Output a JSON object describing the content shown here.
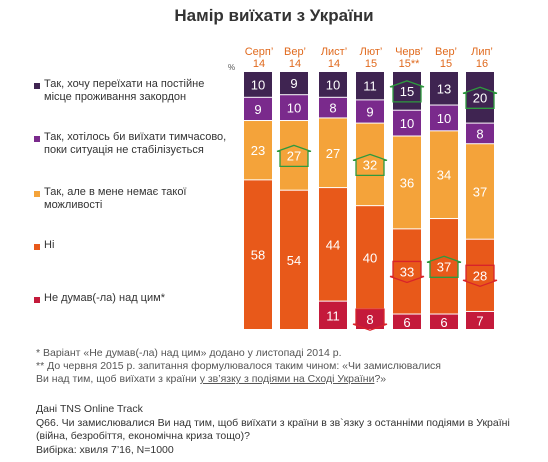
{
  "title": "Намір виїхати з України",
  "percent_sign": "%",
  "columns": [
    {
      "line1": "Серп’",
      "line2": "14"
    },
    {
      "line1": "Вер’",
      "line2": "14"
    },
    {
      "line1": "Лист’",
      "line2": "14"
    },
    {
      "line1": "Лют’",
      "line2": "15"
    },
    {
      "line1": "Черв’",
      "line2": "15**"
    },
    {
      "line1": "Вер’",
      "line2": "15"
    },
    {
      "line1": "Лип’",
      "line2": "16"
    }
  ],
  "legend": [
    {
      "text": "Так, хочу переїхати на постійне місце проживання закордон",
      "color": "#3f2451"
    },
    {
      "text": "Так, хотілось би виїхати тимчасово, поки ситуація не стабілізується",
      "color": "#7a2a8c"
    },
    {
      "text": "Так, але в мене немає такої можливості",
      "color": "#f4a33a"
    },
    {
      "text": "Ні",
      "color": "#e8591a"
    },
    {
      "text": "Не думав(-ла) над цим*",
      "color": "#c41a3b"
    }
  ],
  "chart_data": {
    "type": "bar",
    "stacked": true,
    "categories": [
      "Серп’ 14",
      "Вер’ 14",
      "Лист’ 14",
      "Лют’ 15",
      "Черв’ 15**",
      "Вер’ 15",
      "Лип’ 16"
    ],
    "series": [
      {
        "name": "Так, хочу переїхати на постійне місце проживання закордон",
        "color": "#3f2451",
        "values": [
          10,
          9,
          10,
          11,
          15,
          13,
          20
        ]
      },
      {
        "name": "Так, хотілось би виїхати тимчасово, поки ситуація не стабілізується",
        "color": "#7a2a8c",
        "values": [
          9,
          10,
          8,
          9,
          10,
          10,
          8
        ]
      },
      {
        "name": "Так, але в мене немає такої можливості",
        "color": "#f4a33a",
        "values": [
          23,
          27,
          27,
          32,
          36,
          34,
          37
        ]
      },
      {
        "name": "Ні",
        "color": "#e8591a",
        "values": [
          58,
          54,
          44,
          40,
          33,
          37,
          28
        ]
      },
      {
        "name": "Не думав(-ла) над цим*",
        "color": "#c41a3b",
        "values": [
          null,
          null,
          11,
          8,
          6,
          6,
          7
        ]
      }
    ],
    "ylim": [
      0,
      100
    ],
    "changes": [
      {
        "category": 1,
        "series": 2,
        "direction": "up"
      },
      {
        "category": 3,
        "series": 2,
        "direction": "up"
      },
      {
        "category": 3,
        "series": 4,
        "direction": "down"
      },
      {
        "category": 4,
        "series": 0,
        "direction": "up"
      },
      {
        "category": 4,
        "series": 3,
        "direction": "down"
      },
      {
        "category": 5,
        "series": 3,
        "direction": "up"
      },
      {
        "category": 6,
        "series": 0,
        "direction": "up"
      },
      {
        "category": 6,
        "series": 3,
        "direction": "down"
      }
    ]
  },
  "notes": {
    "note1": "* Варіант «Не думав(-ла) над цим» додано у листопаді 2014 р.",
    "note2_a": "** До червня 2015 р. запитання формулювалося таким чином: «Чи замислювалися Ви над тим, щоб виїхати з країни ",
    "note2_u": "у зв’язку з подіями на Сході України",
    "note2_b": "?»",
    "source": "Дані TNS Online Track",
    "question": "Q66. Чи замислювалися Ви над тим, щоб виїхати з країни в зв`язку з останніми подіями в Україні (війна, безробіття, економічна криза тощо)?",
    "sample": "Вибірка: хвиля 7’16, N=1000"
  }
}
